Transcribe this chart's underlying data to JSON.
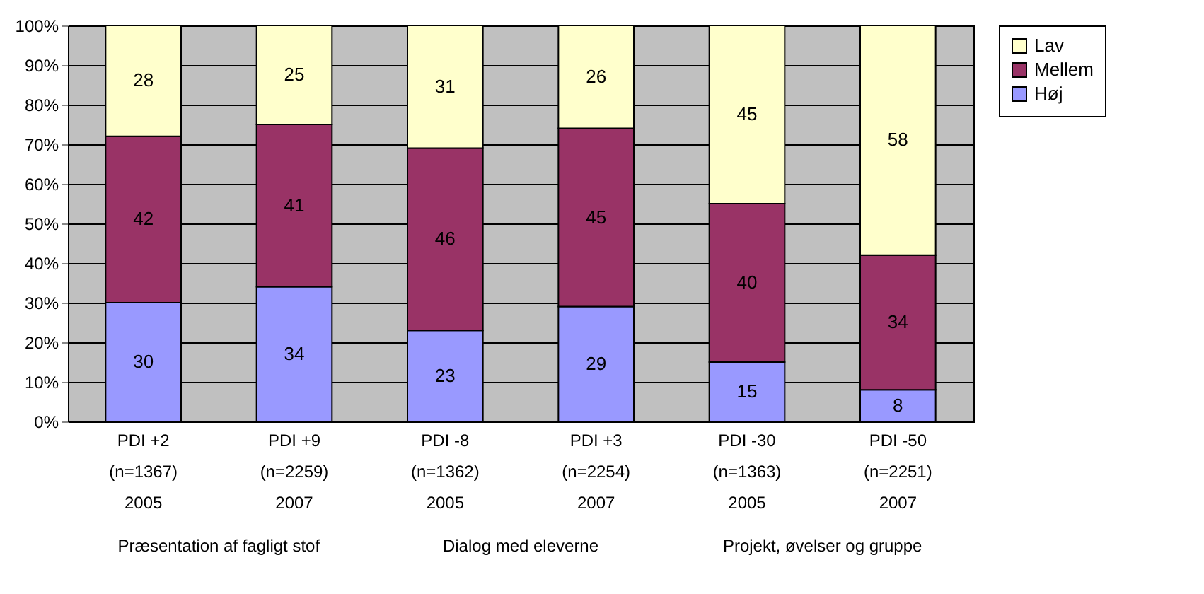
{
  "chart_data": {
    "type": "bar",
    "stacked": true,
    "data_labels": true,
    "grid": "y",
    "legend": "right",
    "categories": [
      "PDI +2\n(n=1367)\n2005",
      "PDI +9\n(n=2259)\n2007",
      "PDI -8\n(n=1362)\n2005",
      "PDI +3\n(n=2254)\n2007",
      "PDI -30\n(n=1363)\n2005",
      "PDI -50\n(n=2251)\n2007"
    ],
    "series": [
      {
        "name": "Høj",
        "color": "#9999ff",
        "values": [
          30,
          34,
          23,
          29,
          15,
          8
        ]
      },
      {
        "name": "Mellem",
        "color": "#993366",
        "values": [
          42,
          41,
          46,
          45,
          40,
          34
        ]
      },
      {
        "name": "Lav",
        "color": "#ffffcc",
        "values": [
          28,
          25,
          31,
          26,
          45,
          58
        ]
      }
    ],
    "ylim": [
      0,
      100
    ],
    "yticks": [
      {
        "value": 0,
        "label": "0%"
      },
      {
        "value": 10,
        "label": "10%"
      },
      {
        "value": 20,
        "label": "20%"
      },
      {
        "value": 30,
        "label": "30%"
      },
      {
        "value": 40,
        "label": "40%"
      },
      {
        "value": 50,
        "label": "50%"
      },
      {
        "value": 60,
        "label": "60%"
      },
      {
        "value": 70,
        "label": "70%"
      },
      {
        "value": 80,
        "label": "80%"
      },
      {
        "value": 90,
        "label": "90%"
      },
      {
        "value": 100,
        "label": "100%"
      }
    ],
    "annotations": [
      "Præsentation af fagligt stof",
      "Dialog med eleverne",
      "Projekt, øvelser og gruppe"
    ]
  }
}
